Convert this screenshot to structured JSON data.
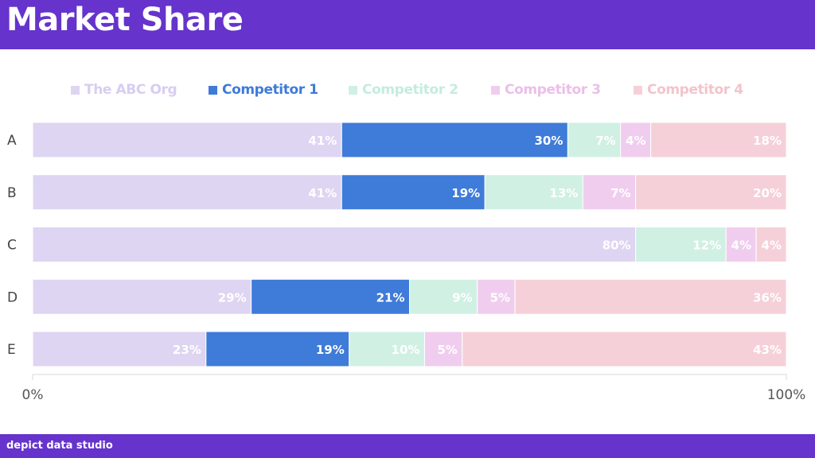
{
  "header": {
    "title": "Market Share"
  },
  "footer": {
    "brand": "depict data studio"
  },
  "colors": {
    "header_bg": "#6633cc",
    "series": [
      "#ded5f2",
      "#3f7bd8",
      "#d0f0e4",
      "#f0cdee",
      "#f6d0d8"
    ],
    "legend_text": [
      "#d8cdf2",
      "#3f7bd8",
      "#c4ece0",
      "#ebbfe8",
      "#f2c4cc"
    ]
  },
  "chart_data": {
    "type": "bar",
    "orientation": "horizontal",
    "stacked": true,
    "title": "Market Share",
    "categories": [
      "A",
      "B",
      "C",
      "D",
      "E"
    ],
    "series": [
      {
        "name": "The ABC Org",
        "values": [
          41,
          41,
          80,
          29,
          23
        ],
        "labels": [
          "41%",
          "41%",
          "80%",
          "29%",
          "23%"
        ]
      },
      {
        "name": "Competitor 1",
        "values": [
          30,
          19,
          0,
          21,
          19
        ],
        "labels": [
          "30%",
          "19%",
          "",
          "21%",
          "19%"
        ]
      },
      {
        "name": "Competitor 2",
        "values": [
          7,
          13,
          12,
          9,
          10
        ],
        "labels": [
          "7%",
          "13%",
          "12%",
          "9%",
          "10%"
        ]
      },
      {
        "name": "Competitor 3",
        "values": [
          4,
          7,
          4,
          5,
          5
        ],
        "labels": [
          "4%",
          "7%",
          "4%",
          "5%",
          "5%"
        ]
      },
      {
        "name": "Competitor 4",
        "values": [
          18,
          20,
          4,
          36,
          43
        ],
        "labels": [
          "18%",
          "20%",
          "4%",
          "36%",
          "43%"
        ]
      }
    ],
    "xlim": [
      0,
      100
    ],
    "ticks": [
      "0%",
      "100%"
    ],
    "legend_position": "top",
    "grid": false
  }
}
